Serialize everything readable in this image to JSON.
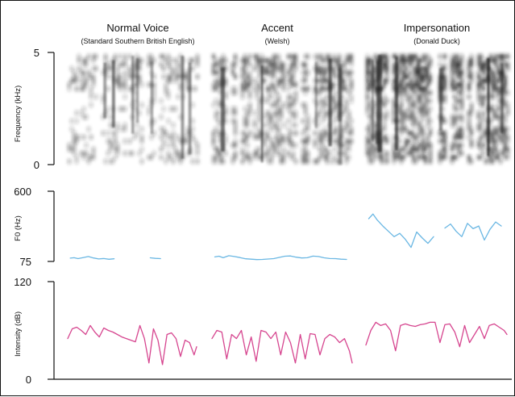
{
  "columns": [
    {
      "title": "Normal Voice",
      "subtitle": "(Standard Southern British English)"
    },
    {
      "title": "Accent",
      "subtitle": "(Welsh)"
    },
    {
      "title": "Impersonation",
      "subtitle": "(Donald Duck)"
    }
  ],
  "panels": {
    "spectrogram": {
      "axis_label": "Frequency (kHz)",
      "tick_top": "5",
      "tick_bottom": "0"
    },
    "f0": {
      "axis_label": "F0 (Hz)",
      "tick_top": "600",
      "tick_bottom": "75"
    },
    "intensity": {
      "axis_label": "Intensity (dB)",
      "tick_top": "120",
      "tick_bottom": "0"
    }
  },
  "colors": {
    "f0_trace": "#6ab7e3",
    "intensity_trace": "#d6458f",
    "spectrogram_ink": "#1a1a1a",
    "axis": "#111111"
  },
  "chart_data": [
    {
      "type": "line",
      "panel": "f0",
      "ylim": [
        75,
        600
      ],
      "x": [
        0.02,
        0.05,
        0.08,
        0.12,
        0.16,
        0.2,
        0.24,
        0.28,
        0.32,
        0.36,
        0.4,
        0.44,
        0.48,
        0.52,
        0.56,
        0.6,
        0.64,
        0.68,
        0.72,
        0.76,
        0.8,
        0.84,
        0.88,
        0.92,
        0.96
      ],
      "series": [
        {
          "values": [
            100,
            103,
            96,
            104,
            112,
            101,
            94,
            97,
            91,
            95,
            null,
            null,
            null,
            null,
            null,
            null,
            102,
            98,
            96,
            null,
            null,
            null,
            null,
            null,
            null
          ]
        },
        {
          "values": [
            109,
            114,
            103,
            118,
            112,
            104,
            95,
            92,
            89,
            90,
            93,
            96,
            105,
            114,
            116,
            107,
            101,
            103,
            115,
            112,
            102,
            97,
            96,
            92,
            90
          ]
        },
        {
          "values": [
            395,
            430,
            385,
            340,
            300,
            260,
            285,
            240,
            180,
            295,
            250,
            210,
            260,
            null,
            325,
            355,
            300,
            260,
            360,
            320,
            340,
            235,
            315,
            370,
            340
          ]
        }
      ]
    },
    {
      "type": "line",
      "panel": "intensity",
      "ylim": [
        0,
        120
      ],
      "x": [
        0,
        0.035,
        0.07,
        0.105,
        0.14,
        0.175,
        0.21,
        0.245,
        0.28,
        0.315,
        0.35,
        0.385,
        0.42,
        0.455,
        0.49,
        0.525,
        0.56,
        0.595,
        0.63,
        0.665,
        0.7,
        0.735,
        0.77,
        0.805,
        0.84,
        0.875,
        0.91,
        0.945,
        0.98,
        1.0
      ],
      "series": [
        {
          "values": [
            50,
            62,
            64,
            60,
            55,
            66,
            58,
            52,
            63,
            60,
            58,
            55,
            52,
            50,
            48,
            46,
            66,
            50,
            20,
            62,
            48,
            18,
            55,
            57,
            50,
            28,
            48,
            45,
            30,
            40
          ]
        },
        {
          "values": [
            50,
            60,
            58,
            25,
            55,
            50,
            60,
            30,
            52,
            22,
            60,
            58,
            50,
            58,
            30,
            58,
            45,
            20,
            55,
            25,
            56,
            55,
            30,
            50,
            55,
            52,
            45,
            50,
            35,
            20
          ]
        },
        {
          "values": [
            42,
            60,
            70,
            66,
            68,
            60,
            35,
            66,
            68,
            66,
            65,
            67,
            68,
            70,
            70,
            45,
            67,
            68,
            58,
            40,
            66,
            45,
            55,
            65,
            50,
            66,
            68,
            64,
            60,
            55
          ]
        }
      ]
    }
  ]
}
